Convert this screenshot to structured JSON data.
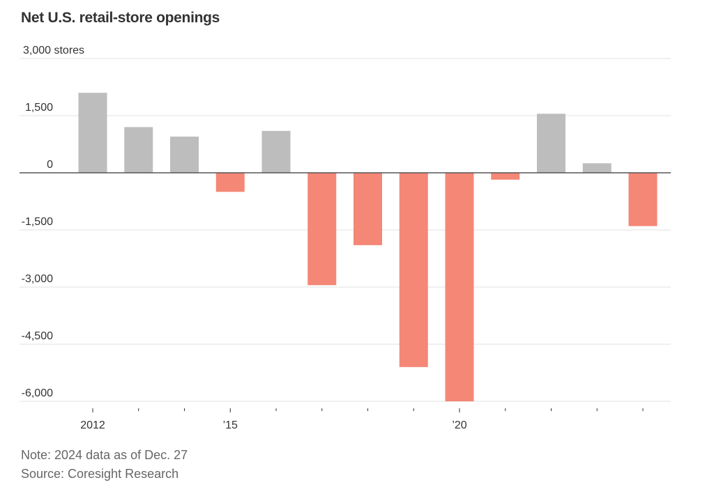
{
  "chart_data": {
    "type": "bar",
    "title": "Net U.S. retail-store openings",
    "xlabel": "",
    "ylabel": "stores",
    "unit_label": "3,000 stores",
    "ylim": [
      -6000,
      3000
    ],
    "yticks": [
      3000,
      1500,
      0,
      -1500,
      -3000,
      -4500,
      -6000
    ],
    "ytick_labels": [
      "3,000 stores",
      "1,500",
      "0",
      "-1,500",
      "-3,000",
      "-4,500",
      "-6,000"
    ],
    "categories": [
      "2012",
      "2013",
      "2014",
      "2015",
      "2016",
      "2017",
      "2018",
      "2019",
      "2020",
      "2021",
      "2022",
      "2023",
      "2024"
    ],
    "xtick_labels": [
      "2012",
      "",
      "",
      "’15",
      "",
      "",
      "",
      "",
      "’20",
      "",
      "",
      "",
      ""
    ],
    "values": [
      2100,
      1200,
      950,
      -500,
      1100,
      -2950,
      -1900,
      -5100,
      -6000,
      -180,
      1550,
      250,
      -1400
    ],
    "grid": true,
    "legend": "none",
    "colors": {
      "positive": "#bdbdbd",
      "negative": "#f48776",
      "zero_line": "#555555",
      "gridline": "#e6e6e6"
    }
  },
  "notes": {
    "note": "Note: 2024 data as of Dec. 27",
    "source": "Source: Coresight Research"
  }
}
